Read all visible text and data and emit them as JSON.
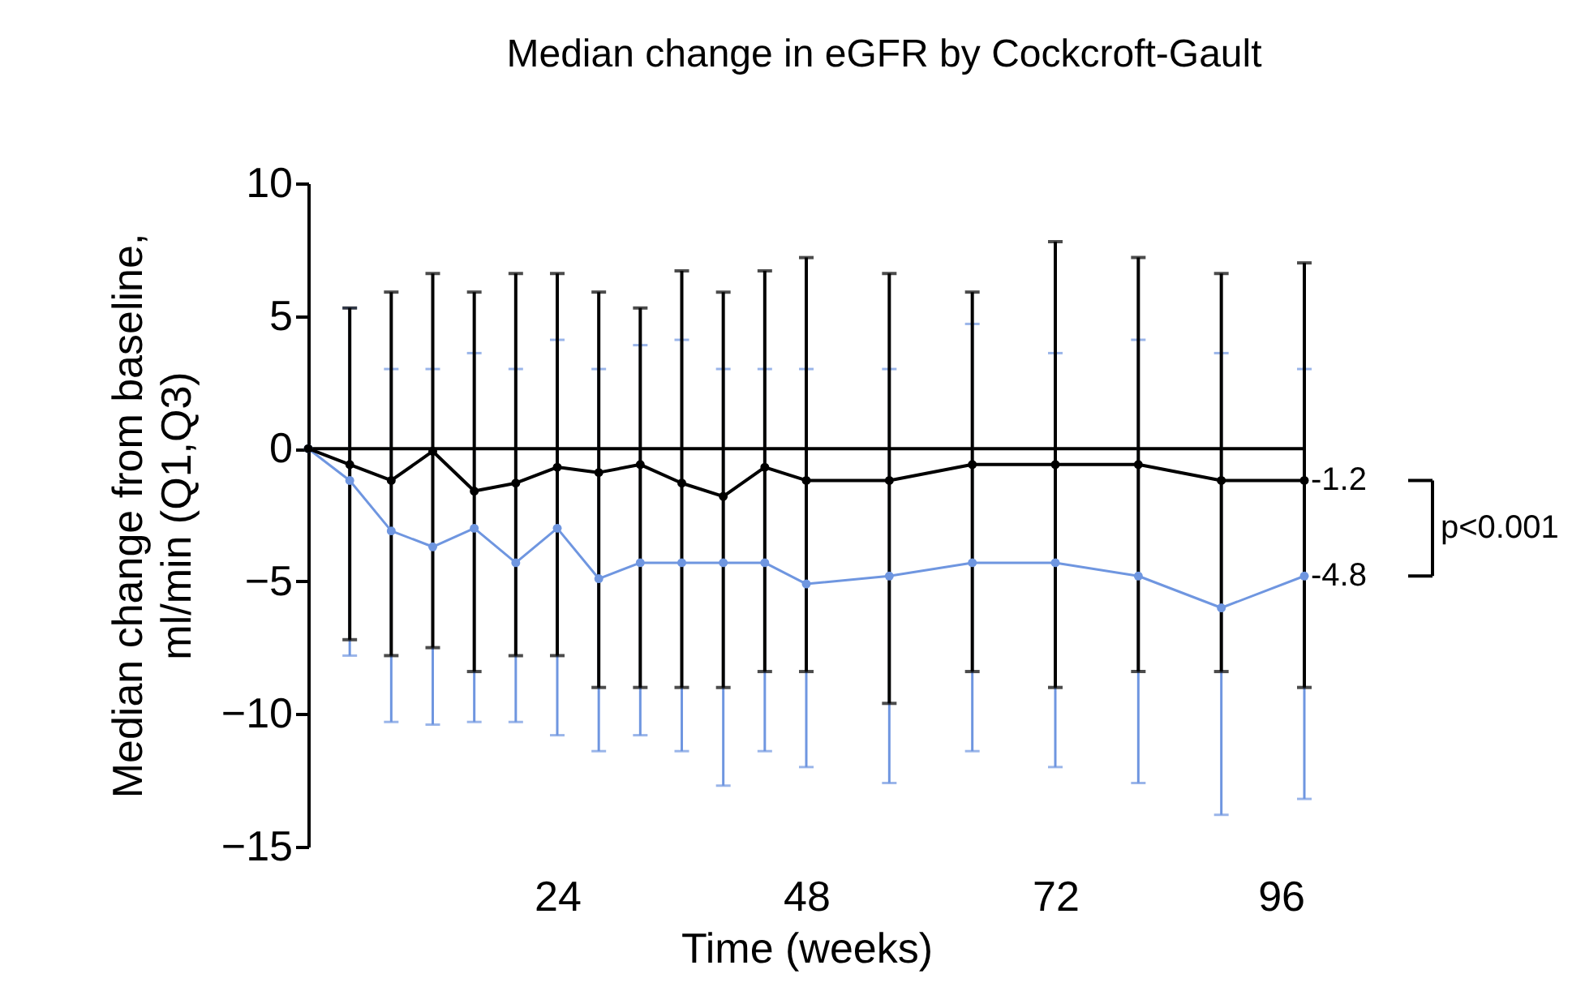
{
  "chart_data": {
    "type": "line",
    "title": "Median change in eGFR by Cockcroft-Gault",
    "xlabel": "Time (weeks)",
    "ylabel": "Median change from baseline,\nml/min (Q1,Q3)",
    "x": [
      0,
      4,
      8,
      12,
      16,
      20,
      24,
      28,
      32,
      36,
      40,
      44,
      48,
      56,
      64,
      72,
      80,
      88,
      96
    ],
    "series": [
      {
        "color": "#6f96e0",
        "values": [
          0,
          -1.2,
          -3.1,
          -3.7,
          -3.0,
          -4.3,
          -3.0,
          -4.9,
          -4.3,
          -4.3,
          -4.3,
          -4.3,
          -5.1,
          -4.8,
          -4.3,
          -4.3,
          -4.8,
          -6.0,
          -4.8
        ],
        "errors": [
          null,
          [
            -7.8,
            5.3
          ],
          [
            -10.3,
            3.0
          ],
          [
            -10.4,
            3.0
          ],
          [
            -10.3,
            3.6
          ],
          [
            -10.3,
            3.0
          ],
          [
            -10.8,
            4.1
          ],
          [
            -11.4,
            3.0
          ],
          [
            -10.8,
            3.9
          ],
          [
            -11.4,
            4.1
          ],
          [
            -12.7,
            3.0
          ],
          [
            -11.4,
            3.0
          ],
          [
            -12.0,
            3.0
          ],
          [
            -12.6,
            3.0
          ],
          [
            -11.4,
            4.7
          ],
          [
            -12.0,
            3.6
          ],
          [
            -12.6,
            4.1
          ],
          [
            -13.8,
            3.6
          ],
          [
            -13.2,
            3.0
          ]
        ]
      },
      {
        "color": "#000000",
        "values": [
          0,
          -0.6,
          -1.2,
          -0.1,
          -1.6,
          -1.3,
          -0.7,
          -0.9,
          -0.6,
          -1.3,
          -1.8,
          -0.7,
          -1.2,
          -1.2,
          -0.6,
          -0.6,
          -0.6,
          -1.2,
          -1.2
        ],
        "errors": [
          null,
          [
            -7.2,
            5.3
          ],
          [
            -7.8,
            5.9
          ],
          [
            -7.5,
            6.6
          ],
          [
            -8.4,
            5.9
          ],
          [
            -7.8,
            6.6
          ],
          [
            -7.8,
            6.6
          ],
          [
            -9.0,
            5.9
          ],
          [
            -9.0,
            5.3
          ],
          [
            -9.0,
            6.7
          ],
          [
            -9.0,
            5.9
          ],
          [
            -8.4,
            6.7
          ],
          [
            -8.4,
            7.2
          ],
          [
            -9.6,
            6.6
          ],
          [
            -8.4,
            5.9
          ],
          [
            -9.0,
            7.8
          ],
          [
            -8.4,
            7.2
          ],
          [
            -8.4,
            6.6
          ],
          [
            -9.0,
            7.0
          ]
        ]
      }
    ],
    "xlim": [
      0,
      96
    ],
    "xticks": [
      24,
      48,
      72,
      96
    ],
    "ylim": [
      -15,
      10
    ],
    "yticks": [
      -15,
      -10,
      -5,
      0,
      5,
      10
    ],
    "ref_lines": [
      {
        "axis": "y",
        "value": 0,
        "color": "#000000"
      }
    ],
    "annotations": [
      {
        "text": "-1.2",
        "x": 96,
        "y": -1.2
      },
      {
        "text": "-4.8",
        "x": 96,
        "y": -4.8
      },
      "p<0.001"
    ],
    "marker": "circle",
    "line_style": "solid",
    "grid": false
  }
}
